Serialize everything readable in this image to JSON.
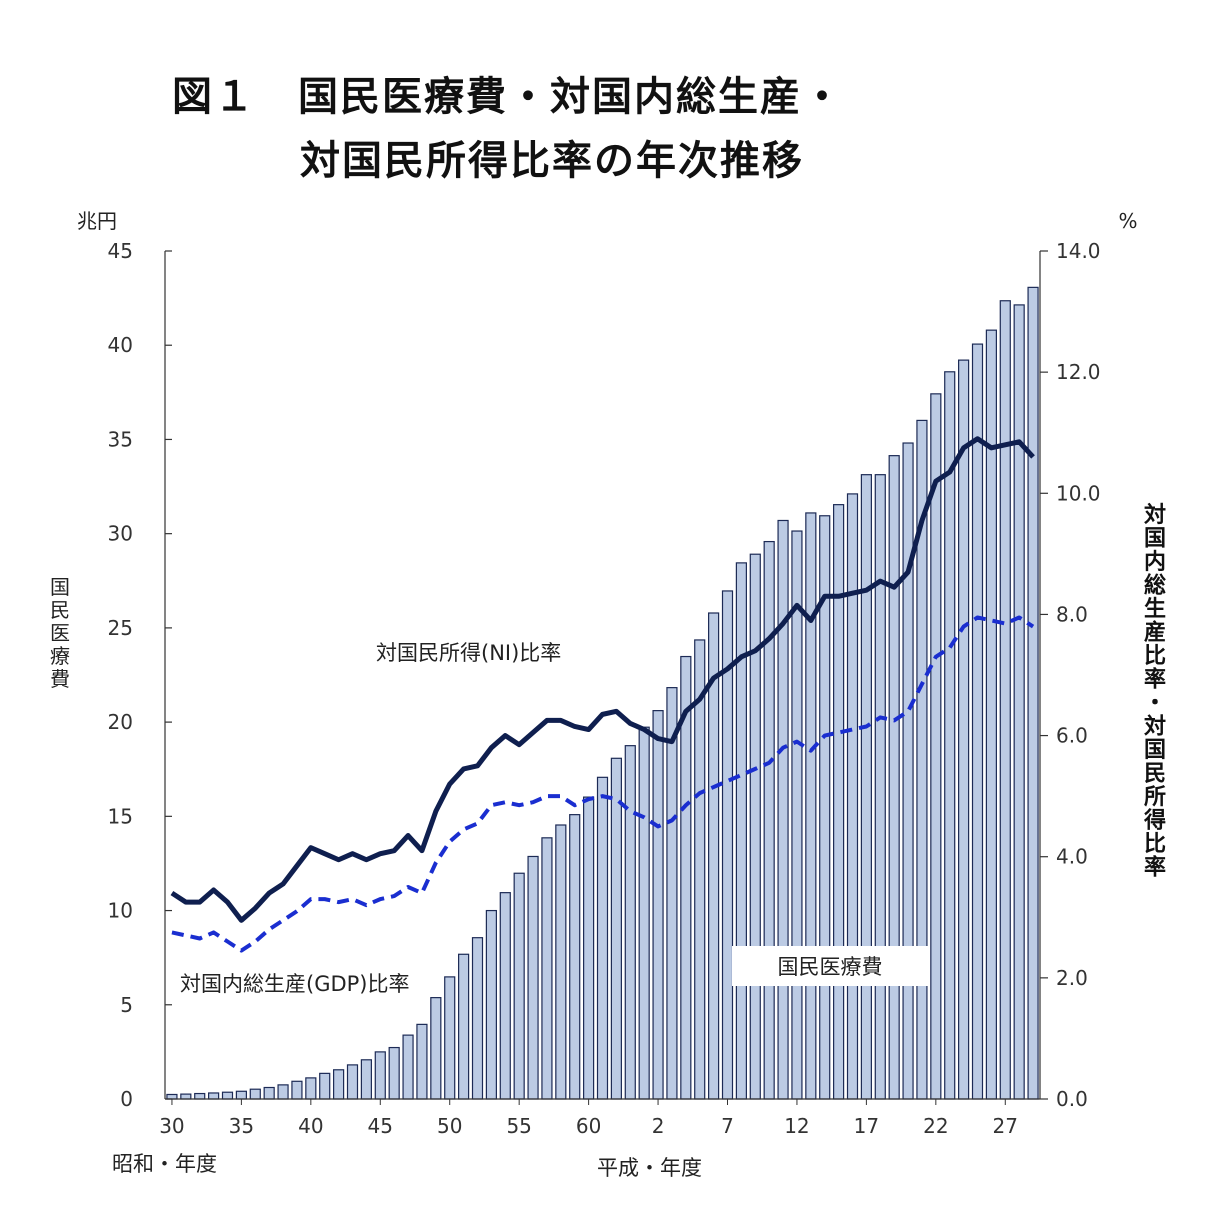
{
  "title": {
    "line1": "図１　国民医療費・対国内総生産・",
    "line2": "対国民所得比率の年次推移"
  },
  "axes": {
    "left_unit": "兆円",
    "right_unit": "%",
    "left_label": "国民医療費",
    "right_label": "対国内総生産比率・対国民所得比率",
    "showa_label": "昭和・年度",
    "heisei_label": "平成・年度",
    "left_ticks": [
      "0",
      "5",
      "10",
      "15",
      "20",
      "25",
      "30",
      "35",
      "40",
      "45"
    ],
    "right_ticks": [
      "0.0",
      "2.0",
      "4.0",
      "6.0",
      "8.0",
      "10.0",
      "12.0",
      "14.0"
    ],
    "x_tick_labels": [
      "30",
      "35",
      "40",
      "45",
      "50",
      "55",
      "60",
      "2",
      "7",
      "12",
      "17",
      "22",
      "27"
    ]
  },
  "labels": {
    "ni": "対国民所得(NI)比率",
    "gdp": "対国内総生産(GDP)比率",
    "cost": "国民医療費"
  },
  "colors": {
    "bar_fill": "#bccbe4",
    "bar_stroke": "#1c2a55",
    "ni_line": "#0f1f4f",
    "gdp_line": "#1a2ed0"
  },
  "chart_data": {
    "type": "bar",
    "x": [
      "S30",
      "S31",
      "S32",
      "S33",
      "S34",
      "S35",
      "S36",
      "S37",
      "S38",
      "S39",
      "S40",
      "S41",
      "S42",
      "S43",
      "S44",
      "S45",
      "S46",
      "S47",
      "S48",
      "S49",
      "S50",
      "S51",
      "S52",
      "S53",
      "S54",
      "S55",
      "S56",
      "S57",
      "S58",
      "S59",
      "S60",
      "S61",
      "S62",
      "S63",
      "H1",
      "H2",
      "H3",
      "H4",
      "H5",
      "H6",
      "H7",
      "H8",
      "H9",
      "H10",
      "H11",
      "H12",
      "H13",
      "H14",
      "H15",
      "H16",
      "H17",
      "H18",
      "H19",
      "H20",
      "H21",
      "H22",
      "H23",
      "H24",
      "H25",
      "H26",
      "H27",
      "H28",
      "H29"
    ],
    "xlim_left": [
      0,
      45
    ],
    "ylim_right": [
      0,
      14
    ],
    "series": [
      {
        "name": "国民医療費",
        "type": "bar",
        "axis": "left",
        "values": [
          0.24,
          0.26,
          0.29,
          0.32,
          0.36,
          0.41,
          0.52,
          0.61,
          0.75,
          0.94,
          1.12,
          1.36,
          1.55,
          1.81,
          2.08,
          2.5,
          2.73,
          3.39,
          3.96,
          5.38,
          6.48,
          7.68,
          8.56,
          10.0,
          10.95,
          11.98,
          12.87,
          13.86,
          14.54,
          15.09,
          16.02,
          17.07,
          18.08,
          18.75,
          19.73,
          20.61,
          21.83,
          23.48,
          24.36,
          25.79,
          26.96,
          28.45,
          28.91,
          29.58,
          30.7,
          30.14,
          31.1,
          30.95,
          31.54,
          32.11,
          33.13,
          33.13,
          34.14,
          34.81,
          36.01,
          37.42,
          38.59,
          39.21,
          40.06,
          40.8,
          42.36,
          42.14,
          43.07
        ]
      },
      {
        "name": "対国民所得(NI)比率",
        "type": "line",
        "axis": "right",
        "values": [
          3.4,
          3.25,
          3.25,
          3.45,
          3.25,
          2.95,
          3.15,
          3.4,
          3.55,
          3.85,
          4.15,
          4.05,
          3.95,
          4.05,
          3.95,
          4.05,
          4.1,
          4.35,
          4.1,
          4.75,
          5.2,
          5.45,
          5.5,
          5.8,
          6.0,
          5.85,
          6.05,
          6.25,
          6.25,
          6.15,
          6.1,
          6.35,
          6.4,
          6.2,
          6.1,
          5.95,
          5.9,
          6.4,
          6.6,
          6.95,
          7.1,
          7.3,
          7.4,
          7.6,
          7.85,
          8.15,
          7.9,
          8.3,
          8.3,
          8.35,
          8.4,
          8.55,
          8.45,
          8.7,
          9.55,
          10.2,
          10.35,
          10.75,
          10.9,
          10.75,
          10.8,
          10.85,
          10.6
        ]
      },
      {
        "name": "対国内総生産(GDP)比率",
        "type": "line",
        "axis": "right",
        "values": [
          2.75,
          2.7,
          2.65,
          2.75,
          2.6,
          2.45,
          2.6,
          2.8,
          2.95,
          3.1,
          3.3,
          3.3,
          3.25,
          3.3,
          3.2,
          3.3,
          3.35,
          3.5,
          3.4,
          3.9,
          4.25,
          4.45,
          4.55,
          4.85,
          4.9,
          4.85,
          4.9,
          5.0,
          5.0,
          4.85,
          4.95,
          5.0,
          4.95,
          4.75,
          4.65,
          4.5,
          4.6,
          4.85,
          5.05,
          5.15,
          5.25,
          5.35,
          5.45,
          5.55,
          5.8,
          5.9,
          5.75,
          6.0,
          6.05,
          6.1,
          6.15,
          6.3,
          6.25,
          6.4,
          6.85,
          7.3,
          7.45,
          7.8,
          7.95,
          7.9,
          7.85,
          7.95,
          7.8
        ]
      }
    ]
  }
}
